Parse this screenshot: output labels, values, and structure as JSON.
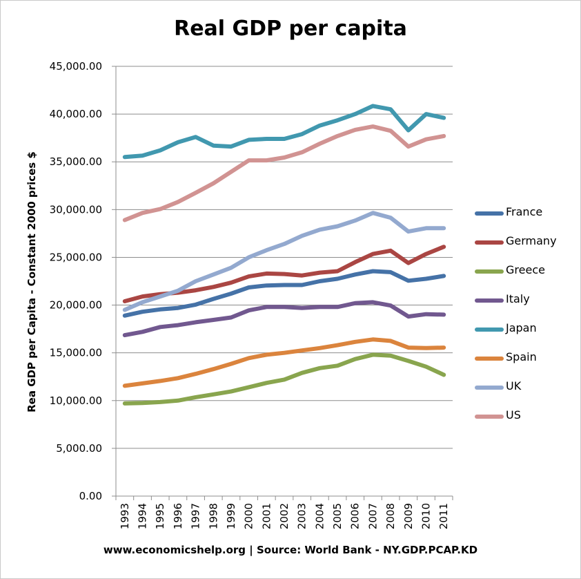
{
  "chart_data": {
    "type": "line",
    "title": "Real GDP per capita",
    "ylabel": "Rea GDP per Capita - Constant 2000 prices $",
    "xlabel": "",
    "source": "www.economicshelp.org | Source: World Bank - NY.GDP.PCAP.KD",
    "ylim": [
      0,
      45000
    ],
    "yticks": [
      "0.00",
      "5,000.00",
      "10,000.00",
      "15,000.00",
      "20,000.00",
      "25,000.00",
      "30,000.00",
      "35,000.00",
      "40,000.00",
      "45,000.00"
    ],
    "x": [
      "1993",
      "1994",
      "1995",
      "1996",
      "1997",
      "1998",
      "1999",
      "2000",
      "2001",
      "2002",
      "2003",
      "2004",
      "2005",
      "2006",
      "2007",
      "2008",
      "2009",
      "2010",
      "2011"
    ],
    "grid": true,
    "legend_position": "right",
    "series": [
      {
        "name": "France",
        "color": "#4572A7",
        "values": [
          18900,
          19300,
          19550,
          19700,
          20050,
          20650,
          21200,
          21850,
          22050,
          22100,
          22100,
          22500,
          22750,
          23200,
          23550,
          23450,
          22550,
          22750,
          23050
        ]
      },
      {
        "name": "Germany",
        "color": "#AA4643",
        "values": [
          20400,
          20900,
          21150,
          21300,
          21550,
          21900,
          22350,
          23000,
          23300,
          23250,
          23100,
          23400,
          23550,
          24500,
          25350,
          25700,
          24400,
          25350,
          26100
        ]
      },
      {
        "name": "Greece",
        "color": "#89A54E",
        "values": [
          9700,
          9750,
          9850,
          10000,
          10350,
          10650,
          10950,
          11400,
          11850,
          12200,
          12900,
          13400,
          13650,
          14350,
          14800,
          14700,
          14150,
          13550,
          12700
        ]
      },
      {
        "name": "Italy",
        "color": "#71588F",
        "values": [
          16850,
          17200,
          17700,
          17900,
          18200,
          18450,
          18700,
          19450,
          19800,
          19800,
          19700,
          19800,
          19800,
          20200,
          20300,
          19950,
          18800,
          19050,
          19000
        ]
      },
      {
        "name": "Japan",
        "color": "#4198AF",
        "values": [
          35500,
          35650,
          36200,
          37050,
          37600,
          36700,
          36600,
          37300,
          37400,
          37400,
          37900,
          38800,
          39350,
          40000,
          40850,
          40500,
          38300,
          40000,
          39600
        ]
      },
      {
        "name": "Spain",
        "color": "#DB843D",
        "values": [
          11550,
          11800,
          12050,
          12350,
          12800,
          13300,
          13850,
          14450,
          14800,
          15000,
          15250,
          15500,
          15800,
          16150,
          16400,
          16250,
          15550,
          15500,
          15550
        ]
      },
      {
        "name": "UK",
        "color": "#93A9CF",
        "values": [
          19500,
          20300,
          20900,
          21500,
          22500,
          23200,
          23900,
          25000,
          25750,
          26400,
          27250,
          27900,
          28250,
          28850,
          29650,
          29150,
          27700,
          28050,
          28050
        ]
      },
      {
        "name": "US",
        "color": "#D19392",
        "values": [
          28900,
          29650,
          30050,
          30800,
          31750,
          32750,
          33950,
          35150,
          35150,
          35450,
          36000,
          36900,
          37700,
          38350,
          38700,
          38250,
          36600,
          37350,
          37700
        ]
      }
    ]
  }
}
